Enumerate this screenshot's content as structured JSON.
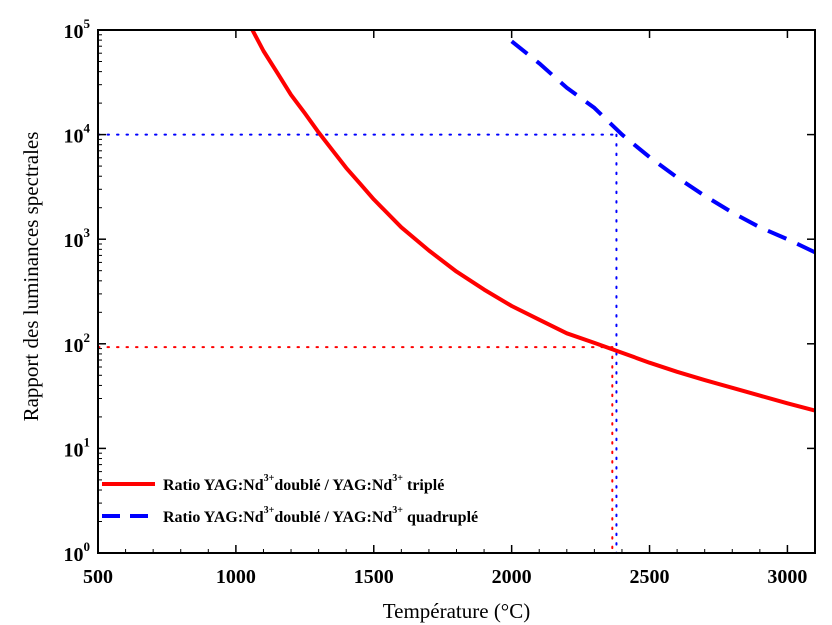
{
  "chart_data": {
    "type": "line",
    "xlabel": "Température (°C)",
    "ylabel": "Rapport des luminances spectrales",
    "xlim": [
      500,
      3100
    ],
    "ylim": [
      1,
      100000
    ],
    "yscale": "log",
    "xticks": [
      500,
      1000,
      1500,
      2000,
      2500,
      3000
    ],
    "yticks": [
      {
        "base": "10",
        "exp": "0",
        "value": 1
      },
      {
        "base": "10",
        "exp": "1",
        "value": 10
      },
      {
        "base": "10",
        "exp": "2",
        "value": 100
      },
      {
        "base": "10",
        "exp": "3",
        "value": 1000
      },
      {
        "base": "10",
        "exp": "4",
        "value": 10000
      },
      {
        "base": "10",
        "exp": "5",
        "value": 100000
      }
    ],
    "grid": false,
    "legend_position": "bottom-left",
    "series": [
      {
        "color": "#ff0000",
        "style": "solid",
        "x": [
          1060,
          1100,
          1150,
          1200,
          1250,
          1300,
          1350,
          1400,
          1450,
          1500,
          1600,
          1700,
          1800,
          1900,
          2000,
          2100,
          2200,
          2300,
          2380,
          2500,
          2600,
          2700,
          2800,
          2900,
          3000,
          3100
        ],
        "y": [
          100000,
          63000,
          39000,
          24000,
          16000,
          10500,
          7100,
          4800,
          3400,
          2400,
          1300,
          780,
          490,
          330,
          230,
          170,
          126,
          102,
          86,
          66,
          54,
          45,
          38,
          32,
          27,
          23
        ]
      },
      {
        "color": "#0000ff",
        "style": "dashed",
        "x": [
          2000,
          2100,
          2200,
          2300,
          2400,
          2500,
          2600,
          2700,
          2800,
          2900,
          3000,
          3100
        ],
        "y": [
          78000,
          48000,
          28000,
          18000,
          10000,
          6100,
          3900,
          2600,
          1800,
          1300,
          1000,
          750
        ]
      }
    ],
    "reference_lines": [
      {
        "color": "#ff0000",
        "y": 93,
        "x": 2365
      },
      {
        "color": "#0000ff",
        "y": 10000,
        "x": 2380
      }
    ],
    "legend": [
      {
        "color": "#ff0000",
        "style": "solid",
        "prefix": "Ratio YAG:Nd",
        "sup1": "3+",
        "middle": "doublé / YAG:Nd",
        "sup2": "3+",
        "suffix": " triplé"
      },
      {
        "color": "#0000ff",
        "style": "dashed",
        "prefix": "Ratio YAG:Nd",
        "sup1": "3+",
        "middle": "doublé / YAG:Nd",
        "sup2": "3+",
        "suffix": " quadruplé"
      }
    ]
  }
}
